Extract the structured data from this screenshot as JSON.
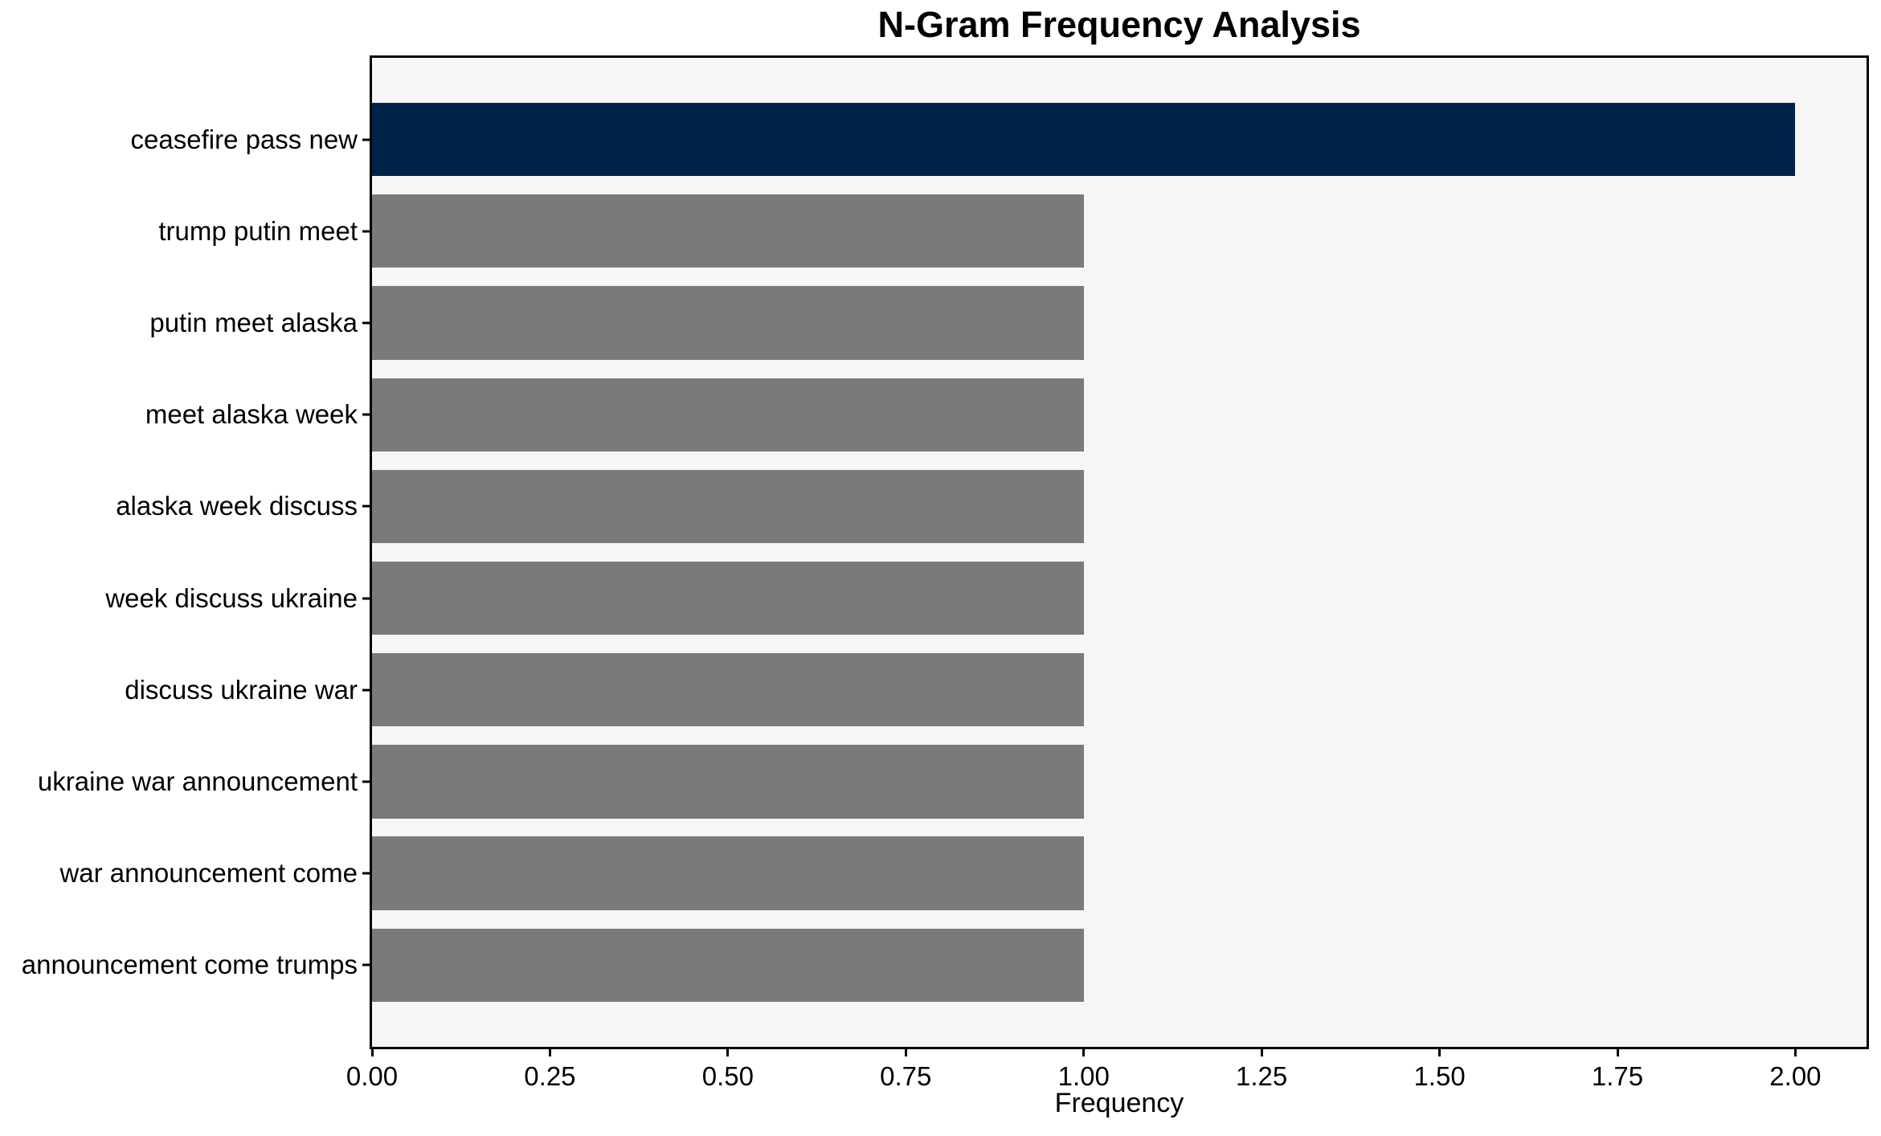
{
  "figure": {
    "background": "#ffffff"
  },
  "chart_data": {
    "type": "bar",
    "orientation": "horizontal",
    "title": "N-Gram Frequency Analysis",
    "xlabel": "Frequency",
    "ylabel": "",
    "categories": [
      "ceasefire pass new",
      "trump putin meet",
      "putin meet alaska",
      "meet alaska week",
      "alaska week discuss",
      "week discuss ukraine",
      "discuss ukraine war",
      "ukraine war announcement",
      "war announcement come",
      "announcement come trumps"
    ],
    "values": [
      2,
      1,
      1,
      1,
      1,
      1,
      1,
      1,
      1,
      1
    ],
    "bar_colors": [
      "#002349",
      "#7a7a78",
      "#7a7a78",
      "#7a7a78",
      "#7a7a78",
      "#7a7a78",
      "#7a7a78",
      "#7a7a78",
      "#7a7a78",
      "#7a7a78"
    ],
    "highlight_color": "#002349",
    "default_bar_color": "#7a7a78",
    "plot_background": "#f6f6f6",
    "axis_color": "#000000",
    "xlim": [
      0,
      2.1
    ],
    "xticks": [
      0,
      0.25,
      0.5,
      0.75,
      1.0,
      1.25,
      1.5,
      1.75,
      2.0
    ],
    "xtick_labels": [
      "0.00",
      "0.25",
      "0.50",
      "0.75",
      "1.00",
      "1.25",
      "1.50",
      "1.75",
      "2.00"
    ],
    "grid": false,
    "legend": null
  }
}
